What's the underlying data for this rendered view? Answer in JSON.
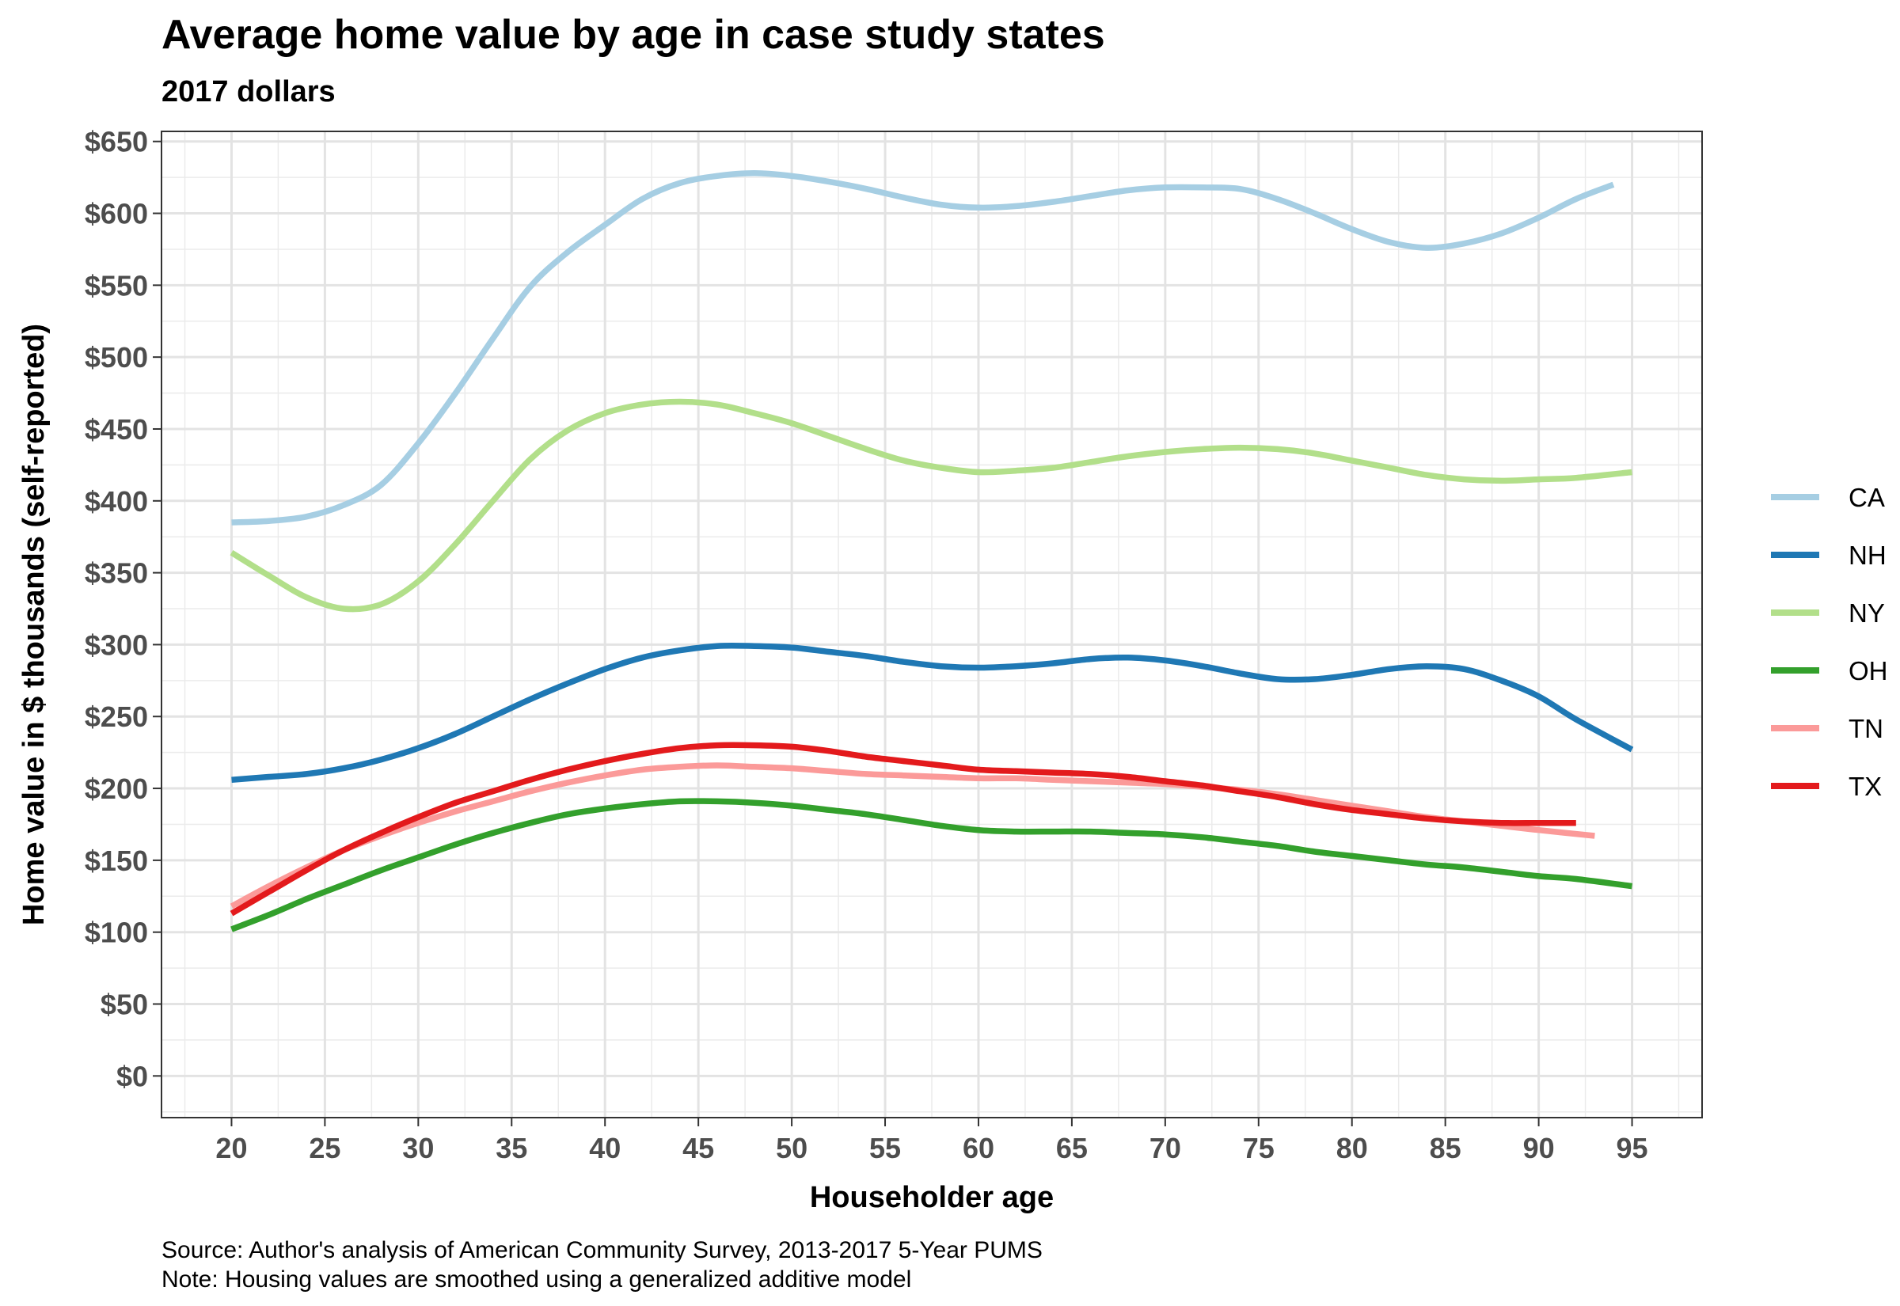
{
  "chart_data": {
    "type": "line",
    "title": "Average home value by age in case study states",
    "subtitle": "2017 dollars",
    "xlabel": "Householder age",
    "ylabel": "Home value in $ thousands (self-reported)",
    "caption_lines": [
      "Source: Author's analysis of American Community Survey, 2013-2017 5-Year PUMS",
      "Note: Housing values are smoothed using a generalized additive model"
    ],
    "xlim": [
      16.25,
      98.75
    ],
    "ylim": [
      -29,
      657
    ],
    "x_ticks": [
      20,
      25,
      30,
      35,
      40,
      45,
      50,
      55,
      60,
      65,
      70,
      75,
      80,
      85,
      90,
      95
    ],
    "y_ticks": [
      0,
      50,
      100,
      150,
      200,
      250,
      300,
      350,
      400,
      450,
      500,
      550,
      600,
      650
    ],
    "y_tick_labels": [
      "$0",
      "$50",
      "$100",
      "$150",
      "$200",
      "$250",
      "$300",
      "$350",
      "$400",
      "$450",
      "$500",
      "$550",
      "$600",
      "$650"
    ],
    "grid": true,
    "legend_position": "right",
    "series": [
      {
        "name": "CA",
        "color": "#a6cee3",
        "x": [
          20,
          22,
          24,
          26,
          28,
          30,
          32,
          34,
          36,
          38,
          40,
          42,
          44,
          46,
          48,
          50,
          52,
          54,
          56,
          58,
          60,
          62,
          64,
          66,
          68,
          70,
          72,
          74,
          76,
          78,
          80,
          82,
          84,
          86,
          88,
          90,
          92,
          94
        ],
        "y": [
          385,
          386,
          389,
          397,
          411,
          440,
          475,
          513,
          549,
          573,
          592,
          610,
          621,
          626,
          628,
          626,
          622,
          617,
          611,
          606,
          604,
          605,
          608,
          612,
          616,
          618,
          618,
          617,
          610,
          600,
          589,
          580,
          576,
          579,
          586,
          597,
          610,
          620
        ]
      },
      {
        "name": "NH",
        "color": "#1f78b4",
        "x": [
          20,
          22,
          24,
          26,
          28,
          30,
          32,
          34,
          36,
          38,
          40,
          42,
          44,
          46,
          48,
          50,
          52,
          54,
          56,
          58,
          60,
          62,
          64,
          66,
          68,
          70,
          72,
          74,
          76,
          78,
          80,
          82,
          84,
          86,
          88,
          90,
          92,
          95
        ],
        "y": [
          206,
          208,
          210,
          214,
          220,
          228,
          238,
          250,
          262,
          273,
          283,
          291,
          296,
          299,
          299,
          298,
          295,
          292,
          288,
          285,
          284,
          285,
          287,
          290,
          291,
          289,
          285,
          280,
          276,
          276,
          279,
          283,
          285,
          283,
          275,
          264,
          248,
          227
        ]
      },
      {
        "name": "NY",
        "color": "#b2df8a",
        "x": [
          20,
          22,
          24,
          26,
          28,
          30,
          32,
          34,
          36,
          38,
          40,
          42,
          44,
          46,
          48,
          50,
          52,
          54,
          56,
          58,
          60,
          62,
          64,
          66,
          68,
          70,
          72,
          74,
          76,
          78,
          80,
          82,
          84,
          86,
          88,
          90,
          92,
          95
        ],
        "y": [
          364,
          348,
          333,
          325,
          328,
          344,
          370,
          400,
          429,
          449,
          461,
          467,
          469,
          467,
          461,
          454,
          445,
          436,
          428,
          423,
          420,
          421,
          423,
          427,
          431,
          434,
          436,
          437,
          436,
          433,
          428,
          423,
          418,
          415,
          414,
          415,
          416,
          420
        ]
      },
      {
        "name": "OH",
        "color": "#33a02c",
        "x": [
          20,
          22,
          24,
          26,
          28,
          30,
          32,
          34,
          36,
          38,
          40,
          42,
          44,
          46,
          48,
          50,
          52,
          54,
          56,
          58,
          60,
          62,
          64,
          66,
          68,
          70,
          72,
          74,
          76,
          78,
          80,
          82,
          84,
          86,
          88,
          90,
          92,
          95
        ],
        "y": [
          102,
          112,
          123,
          133,
          143,
          152,
          161,
          169,
          176,
          182,
          186,
          189,
          191,
          191,
          190,
          188,
          185,
          182,
          178,
          174,
          171,
          170,
          170,
          170,
          169,
          168,
          166,
          163,
          160,
          156,
          153,
          150,
          147,
          145,
          142,
          139,
          137,
          132
        ]
      },
      {
        "name": "TN",
        "color": "#fb9a99",
        "x": [
          20,
          22,
          24,
          26,
          28,
          30,
          32,
          34,
          36,
          38,
          40,
          42,
          44,
          46,
          48,
          50,
          52,
          54,
          56,
          58,
          60,
          62,
          64,
          66,
          68,
          70,
          72,
          74,
          76,
          78,
          80,
          82,
          84,
          86,
          88,
          90,
          93
        ],
        "y": [
          118,
          132,
          145,
          157,
          167,
          176,
          184,
          191,
          198,
          204,
          209,
          213,
          215,
          216,
          215,
          214,
          212,
          210,
          209,
          208,
          207,
          207,
          206,
          205,
          204,
          203,
          201,
          199,
          196,
          192,
          188,
          184,
          180,
          177,
          174,
          171,
          167
        ]
      },
      {
        "name": "TX",
        "color": "#e31a1c",
        "x": [
          20,
          22,
          24,
          26,
          28,
          30,
          32,
          34,
          36,
          38,
          40,
          42,
          44,
          46,
          48,
          50,
          52,
          54,
          56,
          58,
          60,
          62,
          64,
          66,
          68,
          70,
          72,
          74,
          76,
          78,
          80,
          82,
          84,
          86,
          88,
          90,
          92
        ],
        "y": [
          113,
          128,
          143,
          157,
          169,
          180,
          190,
          198,
          206,
          213,
          219,
          224,
          228,
          230,
          230,
          229,
          226,
          222,
          219,
          216,
          213,
          212,
          211,
          210,
          208,
          205,
          202,
          198,
          194,
          189,
          185,
          182,
          179,
          177,
          176,
          176,
          176
        ]
      }
    ]
  }
}
